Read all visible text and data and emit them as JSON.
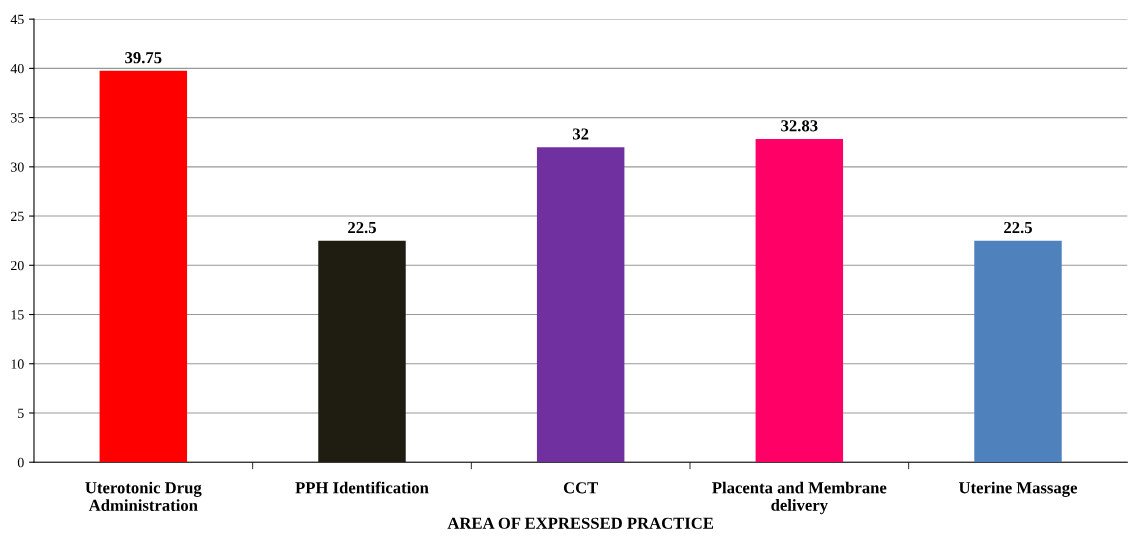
{
  "chart_data": {
    "type": "bar",
    "xlabel": "AREA OF EXPRESSED PRACTICE",
    "categories": [
      "Uterotonic Drug\nAdministration",
      "PPH Identification",
      "CCT",
      "Placenta and Membrane\ndelivery",
      "Uterine Massage"
    ],
    "values": [
      39.75,
      22.5,
      32,
      32.83,
      22.5
    ],
    "colors": [
      "#ff0000",
      "#1f1c12",
      "#7030a0",
      "#ff0066",
      "#4f81bd"
    ],
    "ylim": [
      0,
      45
    ],
    "yticks": [
      0,
      5,
      10,
      15,
      20,
      25,
      30,
      35,
      40,
      45
    ],
    "grid": "y",
    "data_labels": true
  }
}
